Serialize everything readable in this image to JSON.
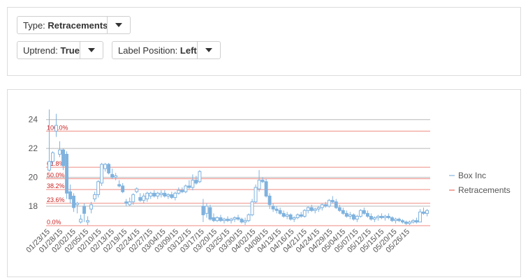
{
  "controls": {
    "type": {
      "label": "Type:",
      "value": "Retracements"
    },
    "uptrend": {
      "label": "Uptrend:",
      "value": "True"
    },
    "label_position": {
      "label": "Label Position:",
      "value": "Left"
    }
  },
  "chart_data": {
    "type": "candlestick",
    "ylim": [
      16.6,
      25
    ],
    "y_ticks": [
      "24",
      "22",
      "20",
      "18"
    ],
    "x_tick_labels": [
      "01/23/15",
      "01/28/15",
      "02/02/15",
      "02/05/15",
      "02/10/15",
      "02/13/15",
      "02/19/15",
      "02/24/15",
      "02/27/15",
      "03/04/15",
      "03/09/15",
      "03/12/15",
      "03/17/15",
      "03/20/15",
      "03/25/15",
      "03/30/15",
      "04/02/15",
      "04/08/15",
      "04/13/15",
      "04/16/15",
      "04/21/15",
      "04/24/15",
      "04/29/15",
      "05/04/15",
      "05/07/15",
      "05/12/15",
      "05/15/15",
      "05/20/15",
      "05/26/15"
    ],
    "retracement_levels": [
      {
        "label": "100.0%",
        "value": 23.2
      },
      {
        "label": "61.8%",
        "value": 20.7
      },
      {
        "label": "50.0%",
        "value": 19.9
      },
      {
        "label": "38.2%",
        "value": 19.15
      },
      {
        "label": "23.6%",
        "value": 18.2
      },
      {
        "label": "0.0%",
        "value": 16.65
      }
    ],
    "legend": [
      {
        "name": "Box Inc",
        "color": "#9ec4e6"
      },
      {
        "name": "Retracements",
        "color": "#ef8a80"
      }
    ],
    "colors": {
      "candle": "#7fb2de",
      "retracement": "#ef8a80",
      "gridline": "#b8b8b8",
      "level_label": "#cc2222"
    },
    "series": {
      "name": "Box Inc",
      "candles": [
        [
          20.5,
          24.7,
          20.4,
          21.1
        ],
        [
          21.1,
          21.8,
          20.9,
          21.7
        ],
        [
          23.2,
          24.4,
          22.8,
          23.6
        ],
        [
          21.6,
          22.5,
          21.4,
          21.9
        ],
        [
          21.9,
          22.0,
          20.5,
          20.8
        ],
        [
          21.6,
          21.8,
          18.5,
          18.9
        ],
        [
          19.0,
          19.5,
          18.2,
          18.5
        ],
        [
          18.7,
          18.9,
          17.6,
          17.9
        ],
        [
          18.1,
          18.3,
          17.5,
          18.2
        ],
        [
          16.9,
          17.4,
          16.8,
          17.1
        ],
        [
          18.0,
          18.2,
          16.9,
          17.5
        ],
        [
          16.9,
          17.3,
          16.7,
          17.0
        ],
        [
          17.8,
          18.3,
          17.5,
          18.1
        ],
        [
          18.5,
          19.0,
          18.3,
          18.8
        ],
        [
          18.8,
          19.8,
          18.6,
          19.7
        ],
        [
          19.6,
          21.0,
          19.4,
          20.9
        ],
        [
          20.6,
          21.0,
          20.4,
          20.9
        ],
        [
          20.9,
          21.0,
          20.2,
          20.3
        ],
        [
          20.2,
          20.6,
          19.9,
          20.0
        ],
        [
          20.0,
          20.3,
          19.8,
          20.1
        ],
        [
          19.5,
          19.8,
          19.3,
          19.4
        ],
        [
          19.4,
          19.6,
          18.9,
          19.0
        ],
        [
          18.3,
          18.5,
          18.0,
          18.2
        ],
        [
          18.1,
          18.6,
          18.0,
          18.3
        ],
        [
          18.3,
          18.9,
          18.1,
          18.8
        ],
        [
          19.0,
          19.3,
          18.9,
          19.2
        ],
        [
          18.6,
          18.9,
          18.3,
          18.4
        ],
        [
          18.4,
          18.9,
          18.2,
          18.7
        ],
        [
          18.5,
          19.0,
          18.3,
          18.9
        ],
        [
          18.7,
          19.0,
          18.5,
          18.9
        ],
        [
          18.9,
          19.1,
          18.6,
          18.7
        ],
        [
          18.7,
          19.0,
          18.5,
          18.9
        ],
        [
          18.8,
          19.1,
          18.6,
          18.9
        ],
        [
          18.9,
          19.1,
          18.6,
          18.7
        ],
        [
          18.7,
          18.9,
          18.5,
          18.8
        ],
        [
          18.8,
          19.0,
          18.5,
          18.6
        ],
        [
          18.6,
          19.0,
          18.4,
          18.9
        ],
        [
          18.9,
          19.3,
          18.8,
          19.1
        ],
        [
          19.1,
          19.3,
          18.9,
          19.0
        ],
        [
          19.0,
          19.5,
          18.9,
          19.4
        ],
        [
          19.4,
          19.8,
          19.2,
          19.3
        ],
        [
          19.3,
          20.2,
          19.1,
          19.8
        ],
        [
          19.8,
          20.1,
          19.5,
          19.6
        ],
        [
          19.7,
          20.5,
          19.6,
          20.4
        ],
        [
          18.0,
          18.5,
          16.9,
          17.4
        ],
        [
          17.5,
          18.2,
          17.2,
          18.0
        ],
        [
          17.9,
          18.1,
          17.0,
          17.1
        ],
        [
          17.2,
          17.5,
          16.9,
          17.0
        ],
        [
          17.0,
          17.3,
          16.9,
          17.2
        ],
        [
          17.2,
          17.4,
          16.9,
          17.0
        ],
        [
          17.0,
          17.2,
          16.8,
          17.1
        ],
        [
          17.1,
          17.3,
          16.9,
          17.0
        ],
        [
          17.0,
          17.2,
          16.8,
          17.1
        ],
        [
          17.1,
          17.3,
          16.9,
          17.2
        ],
        [
          17.2,
          17.4,
          17.0,
          17.1
        ],
        [
          17.1,
          17.2,
          16.8,
          16.9
        ],
        [
          16.9,
          17.2,
          16.7,
          17.0
        ],
        [
          17.0,
          17.5,
          16.9,
          17.4
        ],
        [
          17.4,
          18.5,
          17.3,
          18.3
        ],
        [
          18.3,
          19.5,
          18.2,
          19.3
        ],
        [
          19.2,
          20.5,
          19.0,
          19.8
        ],
        [
          19.8,
          20.0,
          19.6,
          19.7
        ],
        [
          19.7,
          19.9,
          18.6,
          18.7
        ],
        [
          18.7,
          18.9,
          17.8,
          18.1
        ],
        [
          18.0,
          18.2,
          17.6,
          17.8
        ],
        [
          17.8,
          18.0,
          17.5,
          17.7
        ],
        [
          17.7,
          17.9,
          17.4,
          17.5
        ],
        [
          17.5,
          17.7,
          17.2,
          17.3
        ],
        [
          17.3,
          17.6,
          17.1,
          17.4
        ],
        [
          17.4,
          17.5,
          17.0,
          17.1
        ],
        [
          17.1,
          17.3,
          16.9,
          17.2
        ],
        [
          17.2,
          17.5,
          17.1,
          17.4
        ],
        [
          17.4,
          17.6,
          17.2,
          17.3
        ],
        [
          17.3,
          17.8,
          17.2,
          17.7
        ],
        [
          17.7,
          18.0,
          17.5,
          17.9
        ],
        [
          17.9,
          18.1,
          17.6,
          17.7
        ],
        [
          17.7,
          17.9,
          17.5,
          17.8
        ],
        [
          17.8,
          18.0,
          17.6,
          17.9
        ],
        [
          17.9,
          18.2,
          17.7,
          18.1
        ],
        [
          18.1,
          18.3,
          17.9,
          18.0
        ],
        [
          18.0,
          18.5,
          17.9,
          18.4
        ],
        [
          18.4,
          18.7,
          18.2,
          18.3
        ],
        [
          18.3,
          18.5,
          17.8,
          17.9
        ],
        [
          17.9,
          18.1,
          17.6,
          17.7
        ],
        [
          17.7,
          17.9,
          17.4,
          17.5
        ],
        [
          17.5,
          17.7,
          17.2,
          17.3
        ],
        [
          17.3,
          17.6,
          17.1,
          17.4
        ],
        [
          17.4,
          17.5,
          17.0,
          17.1
        ],
        [
          17.1,
          17.4,
          16.9,
          17.3
        ],
        [
          17.3,
          17.8,
          17.2,
          17.7
        ],
        [
          17.7,
          17.9,
          17.4,
          17.5
        ],
        [
          17.5,
          17.7,
          17.2,
          17.3
        ],
        [
          17.3,
          17.5,
          17.0,
          17.1
        ],
        [
          17.1,
          17.3,
          16.9,
          17.2
        ],
        [
          17.2,
          17.4,
          17.0,
          17.3
        ],
        [
          17.3,
          17.5,
          17.1,
          17.2
        ],
        [
          17.2,
          17.4,
          17.0,
          17.3
        ],
        [
          17.3,
          17.5,
          17.1,
          17.2
        ],
        [
          17.2,
          17.3,
          16.9,
          17.0
        ],
        [
          17.0,
          17.2,
          16.8,
          17.1
        ],
        [
          17.1,
          17.2,
          16.9,
          17.0
        ],
        [
          17.0,
          17.1,
          16.8,
          16.9
        ],
        [
          16.9,
          17.0,
          16.7,
          16.8
        ],
        [
          16.8,
          17.0,
          16.7,
          16.9
        ],
        [
          16.9,
          17.1,
          16.8,
          17.0
        ],
        [
          17.0,
          17.2,
          16.8,
          16.9
        ],
        [
          16.9,
          17.8,
          16.9,
          17.6
        ],
        [
          17.6,
          17.9,
          17.4,
          17.5
        ],
        [
          17.5,
          17.8,
          17.3,
          17.7
        ]
      ]
    }
  }
}
